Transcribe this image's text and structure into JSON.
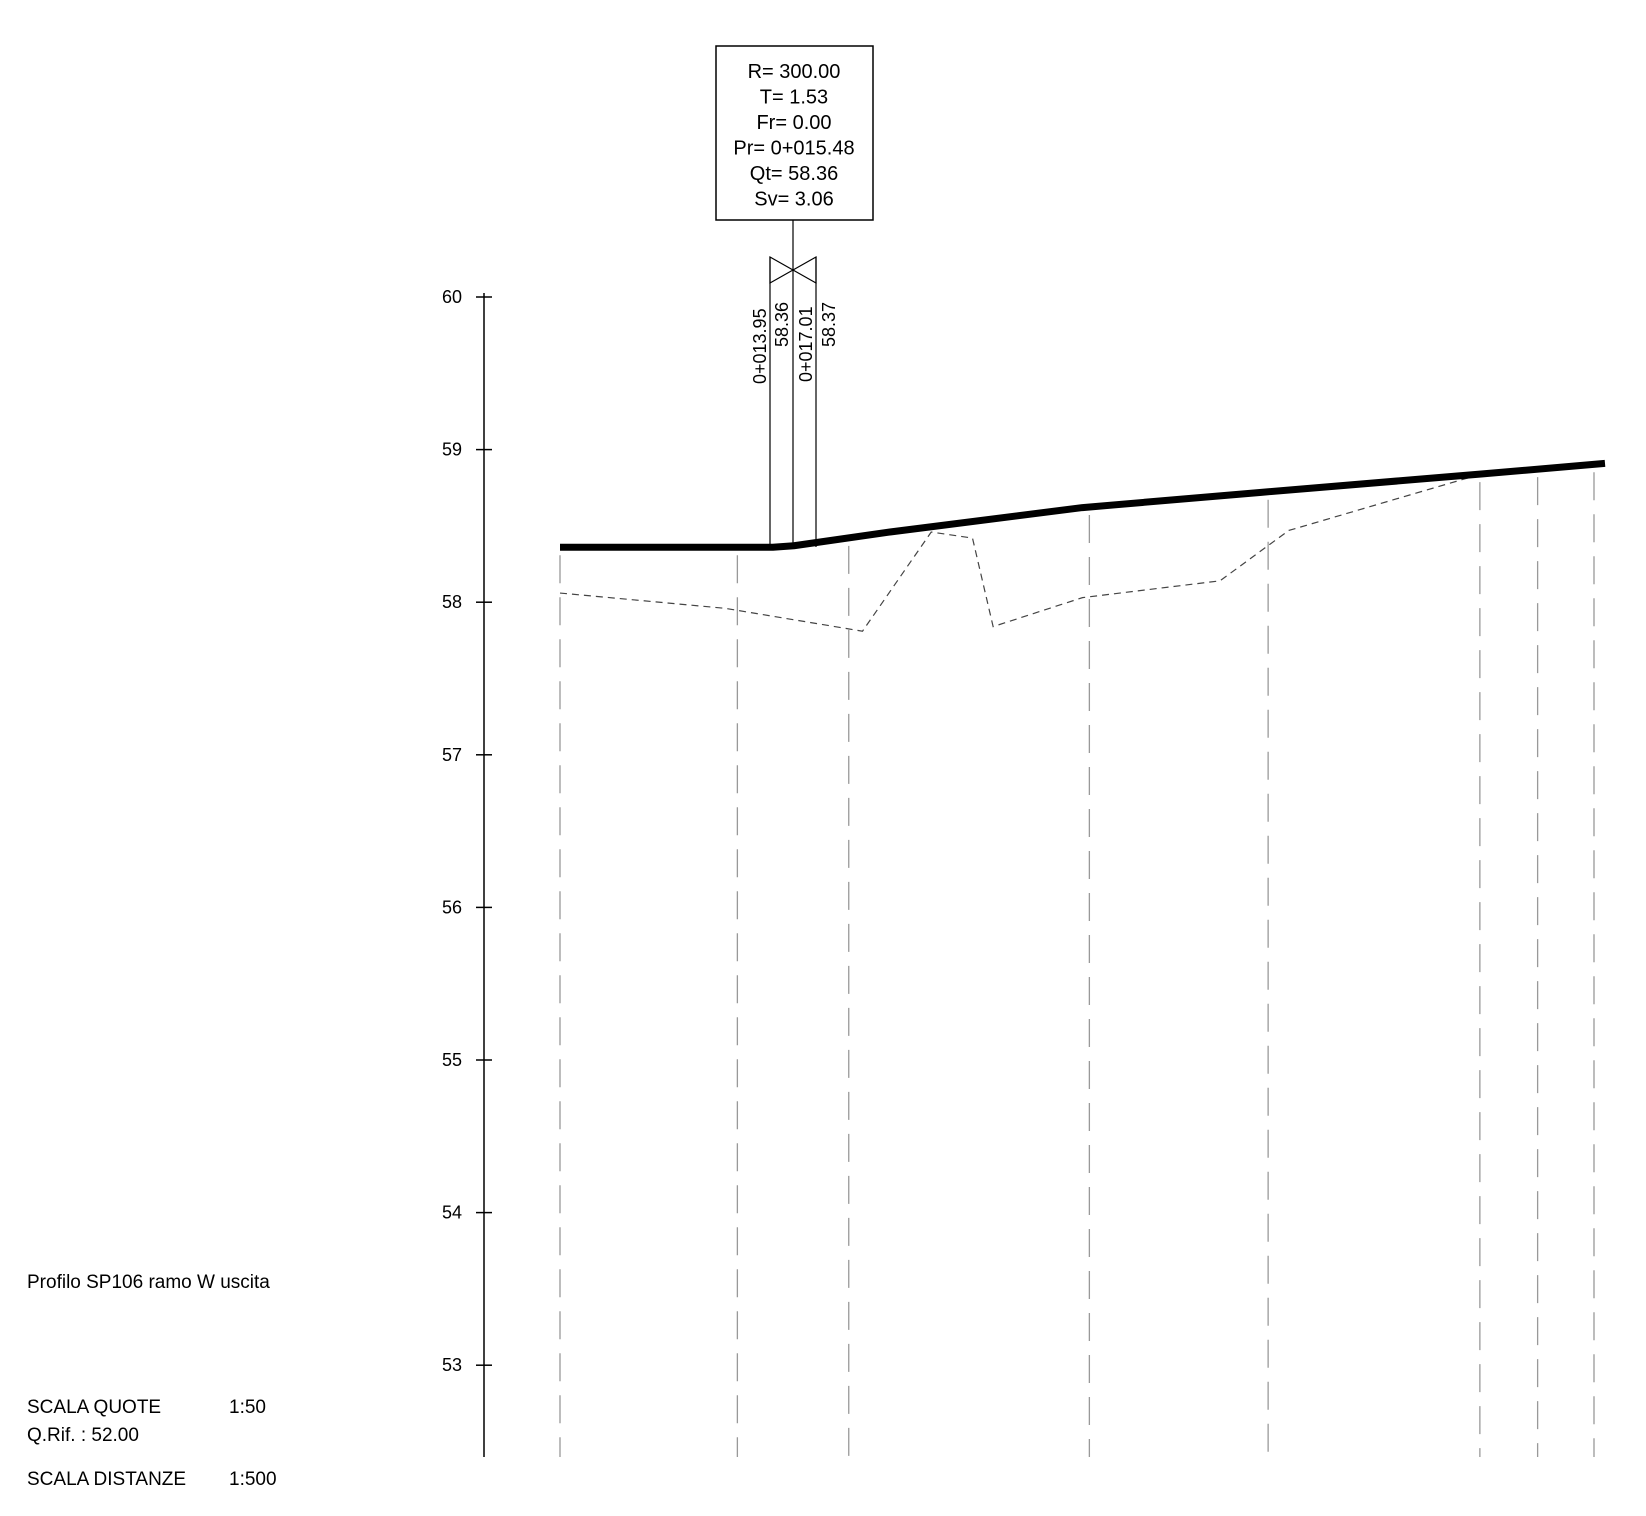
{
  "title": "Profilo SP106 ramo W uscita",
  "scales": [
    {
      "label": "SCALA QUOTE",
      "value": "1:50"
    },
    {
      "label": "SCALA DISTANZE",
      "value": "1:500"
    }
  ],
  "reference_level": "Q.Rif. : 52.00",
  "elevation_axis": {
    "ticks": [
      "60",
      "59",
      "58",
      "57",
      "56",
      "55",
      "54",
      "53"
    ]
  },
  "vertical_curve": {
    "lines": [
      "R= 300.00",
      "T= 1.53",
      "Fr= 0.00",
      "Pr= 0+015.48",
      "Qt= 58.36",
      "Sv= 3.06"
    ],
    "start_station": "0+013.95",
    "start_level": "58.36",
    "end_station": "0+017.01",
    "end_level": "58.37"
  },
  "chart_data": {
    "type": "line",
    "ylim": [
      52.4,
      60
    ],
    "series": [
      {
        "style": "thick-solid",
        "points": [
          [
            0,
            58.36
          ],
          [
            13.95,
            58.36
          ],
          [
            15.48,
            58.36
          ],
          [
            17.01,
            58.37
          ],
          [
            24,
            58.46
          ],
          [
            38,
            58.62
          ],
          [
            51,
            58.72
          ],
          [
            67,
            58.84
          ],
          [
            76,
            58.91
          ]
        ]
      },
      {
        "style": "dashed",
        "points": [
          [
            0,
            58.06
          ],
          [
            12,
            57.96
          ],
          [
            22,
            57.81
          ],
          [
            27,
            58.46
          ],
          [
            30,
            58.42
          ],
          [
            31.5,
            57.84
          ],
          [
            38,
            58.03
          ],
          [
            48,
            58.14
          ],
          [
            53,
            58.47
          ],
          [
            67,
            58.84
          ]
        ]
      }
    ],
    "station_lines": [
      0,
      12.9,
      21,
      38.5,
      51.5,
      66.9,
      71.1,
      75.2
    ]
  }
}
